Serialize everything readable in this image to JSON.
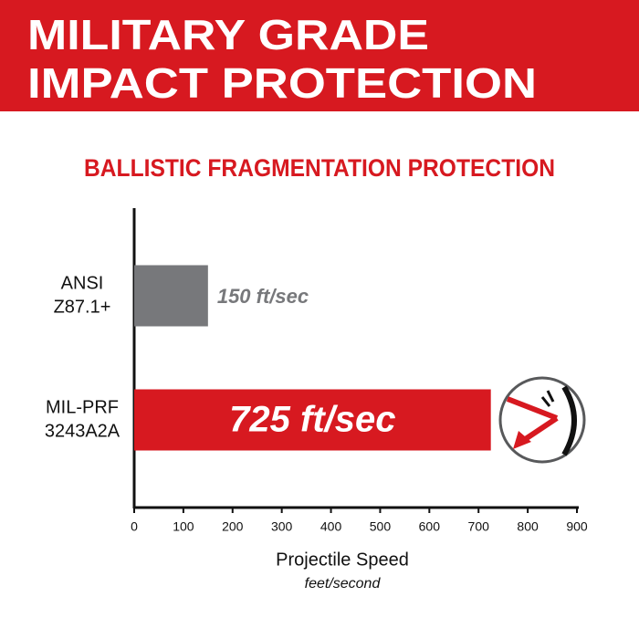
{
  "chart_data": {
    "type": "bar",
    "orientation": "horizontal",
    "title": [
      "MILITARY GRADE",
      "IMPACT PROTECTION"
    ],
    "subtitle": "BALLISTIC FRAGMENTATION PROTECTION",
    "categories": [
      [
        "ANSI",
        "Z87.1+"
      ],
      [
        "MIL-PRF",
        "3243A2A"
      ]
    ],
    "values": [
      150,
      725
    ],
    "value_labels": [
      "150 ft/sec",
      "725 ft/sec"
    ],
    "colors": [
      "#77787b",
      "#d71920"
    ],
    "xlim": [
      0,
      900
    ],
    "xticks": [
      0,
      100,
      200,
      300,
      400,
      500,
      600,
      700,
      800,
      900
    ],
    "xlabel": "Projectile Speed",
    "xlabel_unit": "feet/second"
  }
}
